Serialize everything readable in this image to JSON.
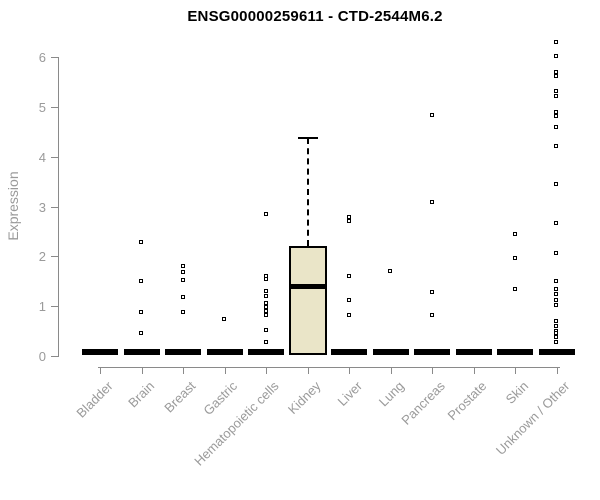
{
  "chart_data": {
    "type": "boxplot",
    "title": "ENSG00000259611 - CTD-2544M6.2",
    "ylabel": "Expression",
    "xlabel": "",
    "ylim": [
      0,
      6.5
    ],
    "yticks": [
      0,
      1,
      2,
      3,
      4,
      5,
      6
    ],
    "grid": false,
    "legend": "none",
    "colors": {
      "box_fill": "#EAE5C8",
      "box_border": "#000000",
      "axis": "#8a8a8a",
      "labels": "#9a9a9a",
      "title": "#000000",
      "points": "#000000"
    },
    "categories": [
      "Bladder",
      "Brain",
      "Breast",
      "Gastric",
      "Hematopoietic cells",
      "Kidney",
      "Liver",
      "Lung",
      "Pancreas",
      "Prostate",
      "Skin",
      "Unknown / Other"
    ],
    "series": [
      {
        "name": "Bladder",
        "median": 0,
        "box": null,
        "points": []
      },
      {
        "name": "Brain",
        "median": 0,
        "box": null,
        "points": [
          2.27,
          1.49,
          0.87,
          0.45
        ]
      },
      {
        "name": "Breast",
        "median": 0,
        "box": null,
        "points": [
          1.79,
          1.67,
          1.51,
          1.18,
          0.88
        ]
      },
      {
        "name": "Gastric",
        "median": 0,
        "box": null,
        "points": [
          0.73
        ]
      },
      {
        "name": "Hematopoietic cells",
        "median": 0,
        "box": null,
        "points": [
          2.83,
          1.59,
          1.53,
          1.29,
          1.2,
          1.06,
          0.98,
          0.9,
          0.82,
          0.52,
          0.28
        ]
      },
      {
        "name": "Kidney",
        "median": 1.4,
        "box": {
          "q1": 0.02,
          "median": 1.4,
          "q3": 2.21,
          "whisker_high": 4.38,
          "whisker_low": 0.02
        },
        "points": []
      },
      {
        "name": "Liver",
        "median": 0,
        "box": null,
        "points": [
          2.77,
          2.7,
          1.59,
          1.12,
          0.82
        ]
      },
      {
        "name": "Lung",
        "median": 0,
        "box": null,
        "points": [
          1.69
        ]
      },
      {
        "name": "Pancreas",
        "median": 0,
        "box": null,
        "points": [
          4.82,
          3.09,
          1.27,
          0.82
        ]
      },
      {
        "name": "Prostate",
        "median": 0,
        "box": null,
        "points": []
      },
      {
        "name": "Skin",
        "median": 0,
        "box": null,
        "points": [
          2.43,
          1.95,
          1.33
        ]
      },
      {
        "name": "Unknown / Other",
        "median": 0,
        "box": null,
        "points": [
          6.29,
          6.01,
          5.68,
          5.6,
          5.31,
          5.21,
          4.88,
          4.8,
          4.58,
          4.2,
          3.45,
          2.65,
          2.05,
          1.49,
          1.33,
          1.23,
          1.12,
          1.02,
          0.7,
          0.6,
          0.5,
          0.46,
          0.38,
          0.28
        ]
      }
    ]
  }
}
